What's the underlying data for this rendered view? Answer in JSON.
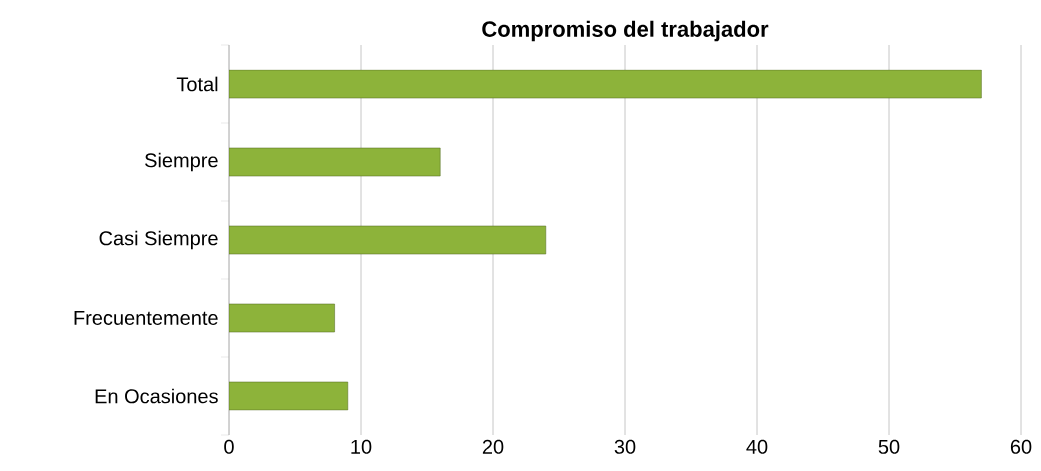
{
  "chart_data": {
    "type": "bar",
    "orientation": "horizontal",
    "title": "Compromiso del trabajador",
    "categories": [
      "Total",
      "Siempre",
      "Casi Siempre",
      "Frecuentemente",
      "En Ocasiones"
    ],
    "values": [
      57,
      16,
      24,
      8,
      9
    ],
    "color": "#8db33a",
    "xlim": [
      0,
      60
    ],
    "xticks": [
      0,
      10,
      20,
      30,
      40,
      50,
      60
    ],
    "grid": "x"
  }
}
